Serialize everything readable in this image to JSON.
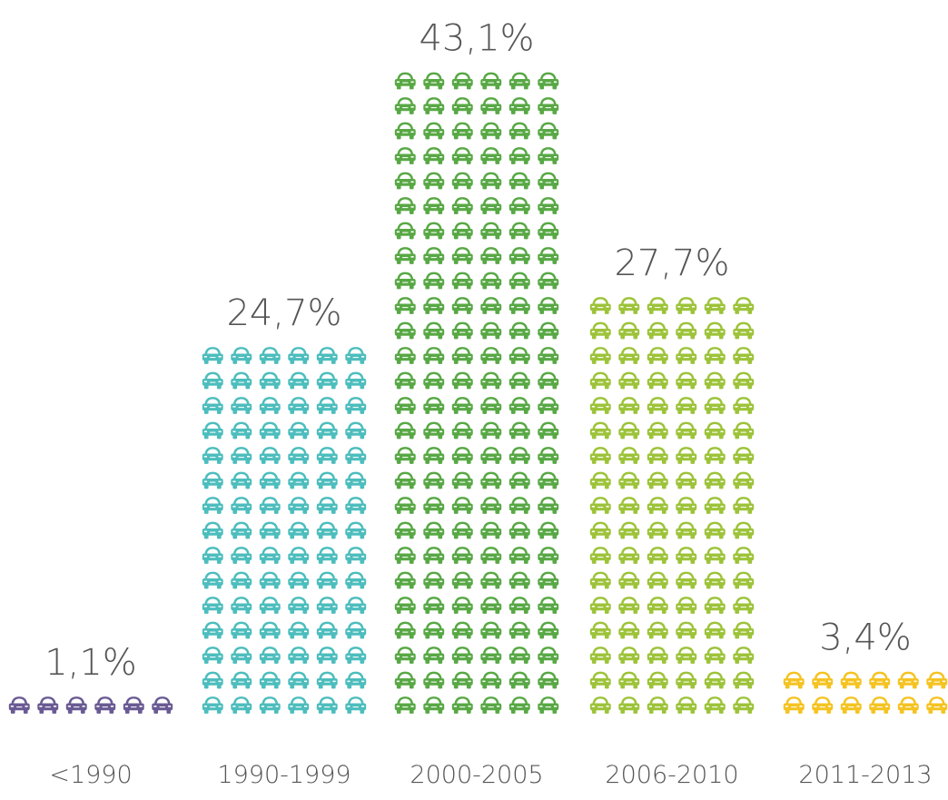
{
  "chart_data": {
    "type": "pictogram",
    "categories": [
      "<1990",
      "1990-1999",
      "2000-2005",
      "2006-2010",
      "2011-2013"
    ],
    "values": [
      1.1,
      24.7,
      43.1,
      27.7,
      3.4
    ],
    "value_labels": [
      "1,1%",
      "24,7%",
      "43,1%",
      "27,7%",
      "3,4%"
    ],
    "colors": [
      "#6a5a93",
      "#4dbdbd",
      "#58a845",
      "#9dc33a",
      "#f5c322"
    ]
  }
}
